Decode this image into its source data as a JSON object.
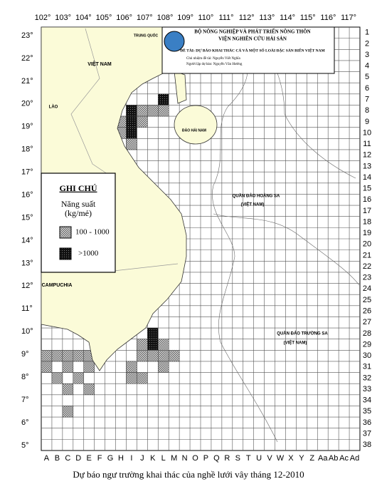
{
  "longitude_labels": [
    "102°",
    "103°",
    "104°",
    "105°",
    "106°",
    "107°",
    "108°",
    "109°",
    "110°",
    "111°",
    "112°",
    "113°",
    "114°",
    "115°",
    "116°",
    "117°"
  ],
  "latitude_labels": [
    "23°",
    "22°",
    "21°",
    "20°",
    "19°",
    "18°",
    "17°",
    "16°",
    "15°",
    "14°",
    "13°",
    "12°",
    "11°",
    "10°",
    "9°",
    "8°",
    "7°",
    "6°",
    "5°"
  ],
  "column_labels": [
    "A",
    "B",
    "C",
    "D",
    "E",
    "F",
    "G",
    "H",
    "I",
    "J",
    "K",
    "L",
    "M",
    "N",
    "O",
    "P",
    "Q",
    "R",
    "S",
    "T",
    "U",
    "V",
    "W",
    "X",
    "Y",
    "Z",
    "Aa",
    "Ab",
    "Ac",
    "Ad"
  ],
  "row_labels": [
    1,
    2,
    3,
    4,
    5,
    6,
    7,
    8,
    9,
    10,
    11,
    12,
    13,
    14,
    15,
    16,
    17,
    18,
    19,
    20,
    21,
    22,
    23,
    24,
    25,
    26,
    27,
    28,
    29,
    30,
    31,
    32,
    33,
    34,
    35,
    36,
    37,
    38
  ],
  "header": {
    "line1": "BỘ NÔNG NGHIỆP VÀ PHÁT TRIỂN NÔNG THÔN",
    "line2": "VIỆN NGHIÊN CỨU HẢI SẢN",
    "line3": "ĐỀ TÀI: DỰ BÁO KHAI THÁC CÁ VÀ MỘT SỐ LOÀI ĐẶC SẢN BIỂN VIỆT NAM",
    "line4": "Chủ nhiệm đề tài: Nguyễn Viết Nghĩa",
    "line5": "Người lập dự báo: Nguyễn Văn Hướng"
  },
  "legend": {
    "title": "GHI CHÚ",
    "quantity": "Năng suất",
    "unit": "(kg/mẻ)",
    "items": [
      {
        "label": "100 - 1000"
      },
      {
        "label": ">1000"
      }
    ]
  },
  "map_labels": [
    "TRUNG QUỐC",
    "VIỆT NAM",
    "LÀO",
    "ĐẢO HẢI NAM",
    "CAMPUCHIA",
    "QUẦN ĐẢO HOÀNG SA",
    "(VIỆT NAM)",
    "QUẦN ĐẢO TRƯỜNG SA",
    "(VIỆT NAM)"
  ],
  "caption": "Dự báo ngư trường khai thác của nghề lưới vây tháng 12-2010"
}
